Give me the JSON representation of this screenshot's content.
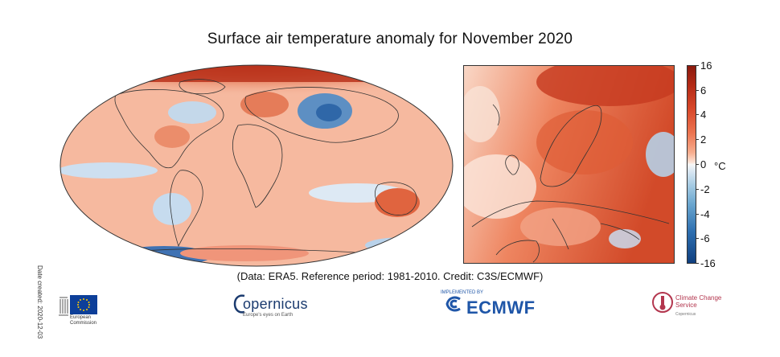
{
  "title": "Surface air temperature anomaly for November 2020",
  "credit": "(Data: ERA5.  Reference period: 1981-2010.  Credit: C3S/ECMWF)",
  "date_created": "Date created: 2020-12-03",
  "colorbar": {
    "unit": "°C",
    "ticks": [
      "16",
      "6",
      "4",
      "2",
      "0",
      "-2",
      "-4",
      "-6",
      "-16"
    ],
    "colors": {
      "max": "#8b1a0e",
      "warm": "#d8482a",
      "neutral": "#f7f7f7",
      "cool": "#6ba7cf",
      "min": "#0f3f7f"
    }
  },
  "maps": [
    {
      "name": "World",
      "projection": "Robinson"
    },
    {
      "name": "Europe"
    }
  ],
  "logos": {
    "eu": {
      "text": "European Commission",
      "icon": "eu-flag-icon"
    },
    "copernicus": {
      "text": "opernicus",
      "sub": "Europe's eyes on Earth",
      "icon": "copernicus-c-icon"
    },
    "ecmwf": {
      "text": "ECMWF",
      "top": "IMPLEMENTED BY",
      "icon": "ecmwf-mark-icon"
    },
    "c3s": {
      "text": "Climate Change Service",
      "sub": "Copernicus",
      "icon": "c3s-thermometer-icon"
    }
  }
}
